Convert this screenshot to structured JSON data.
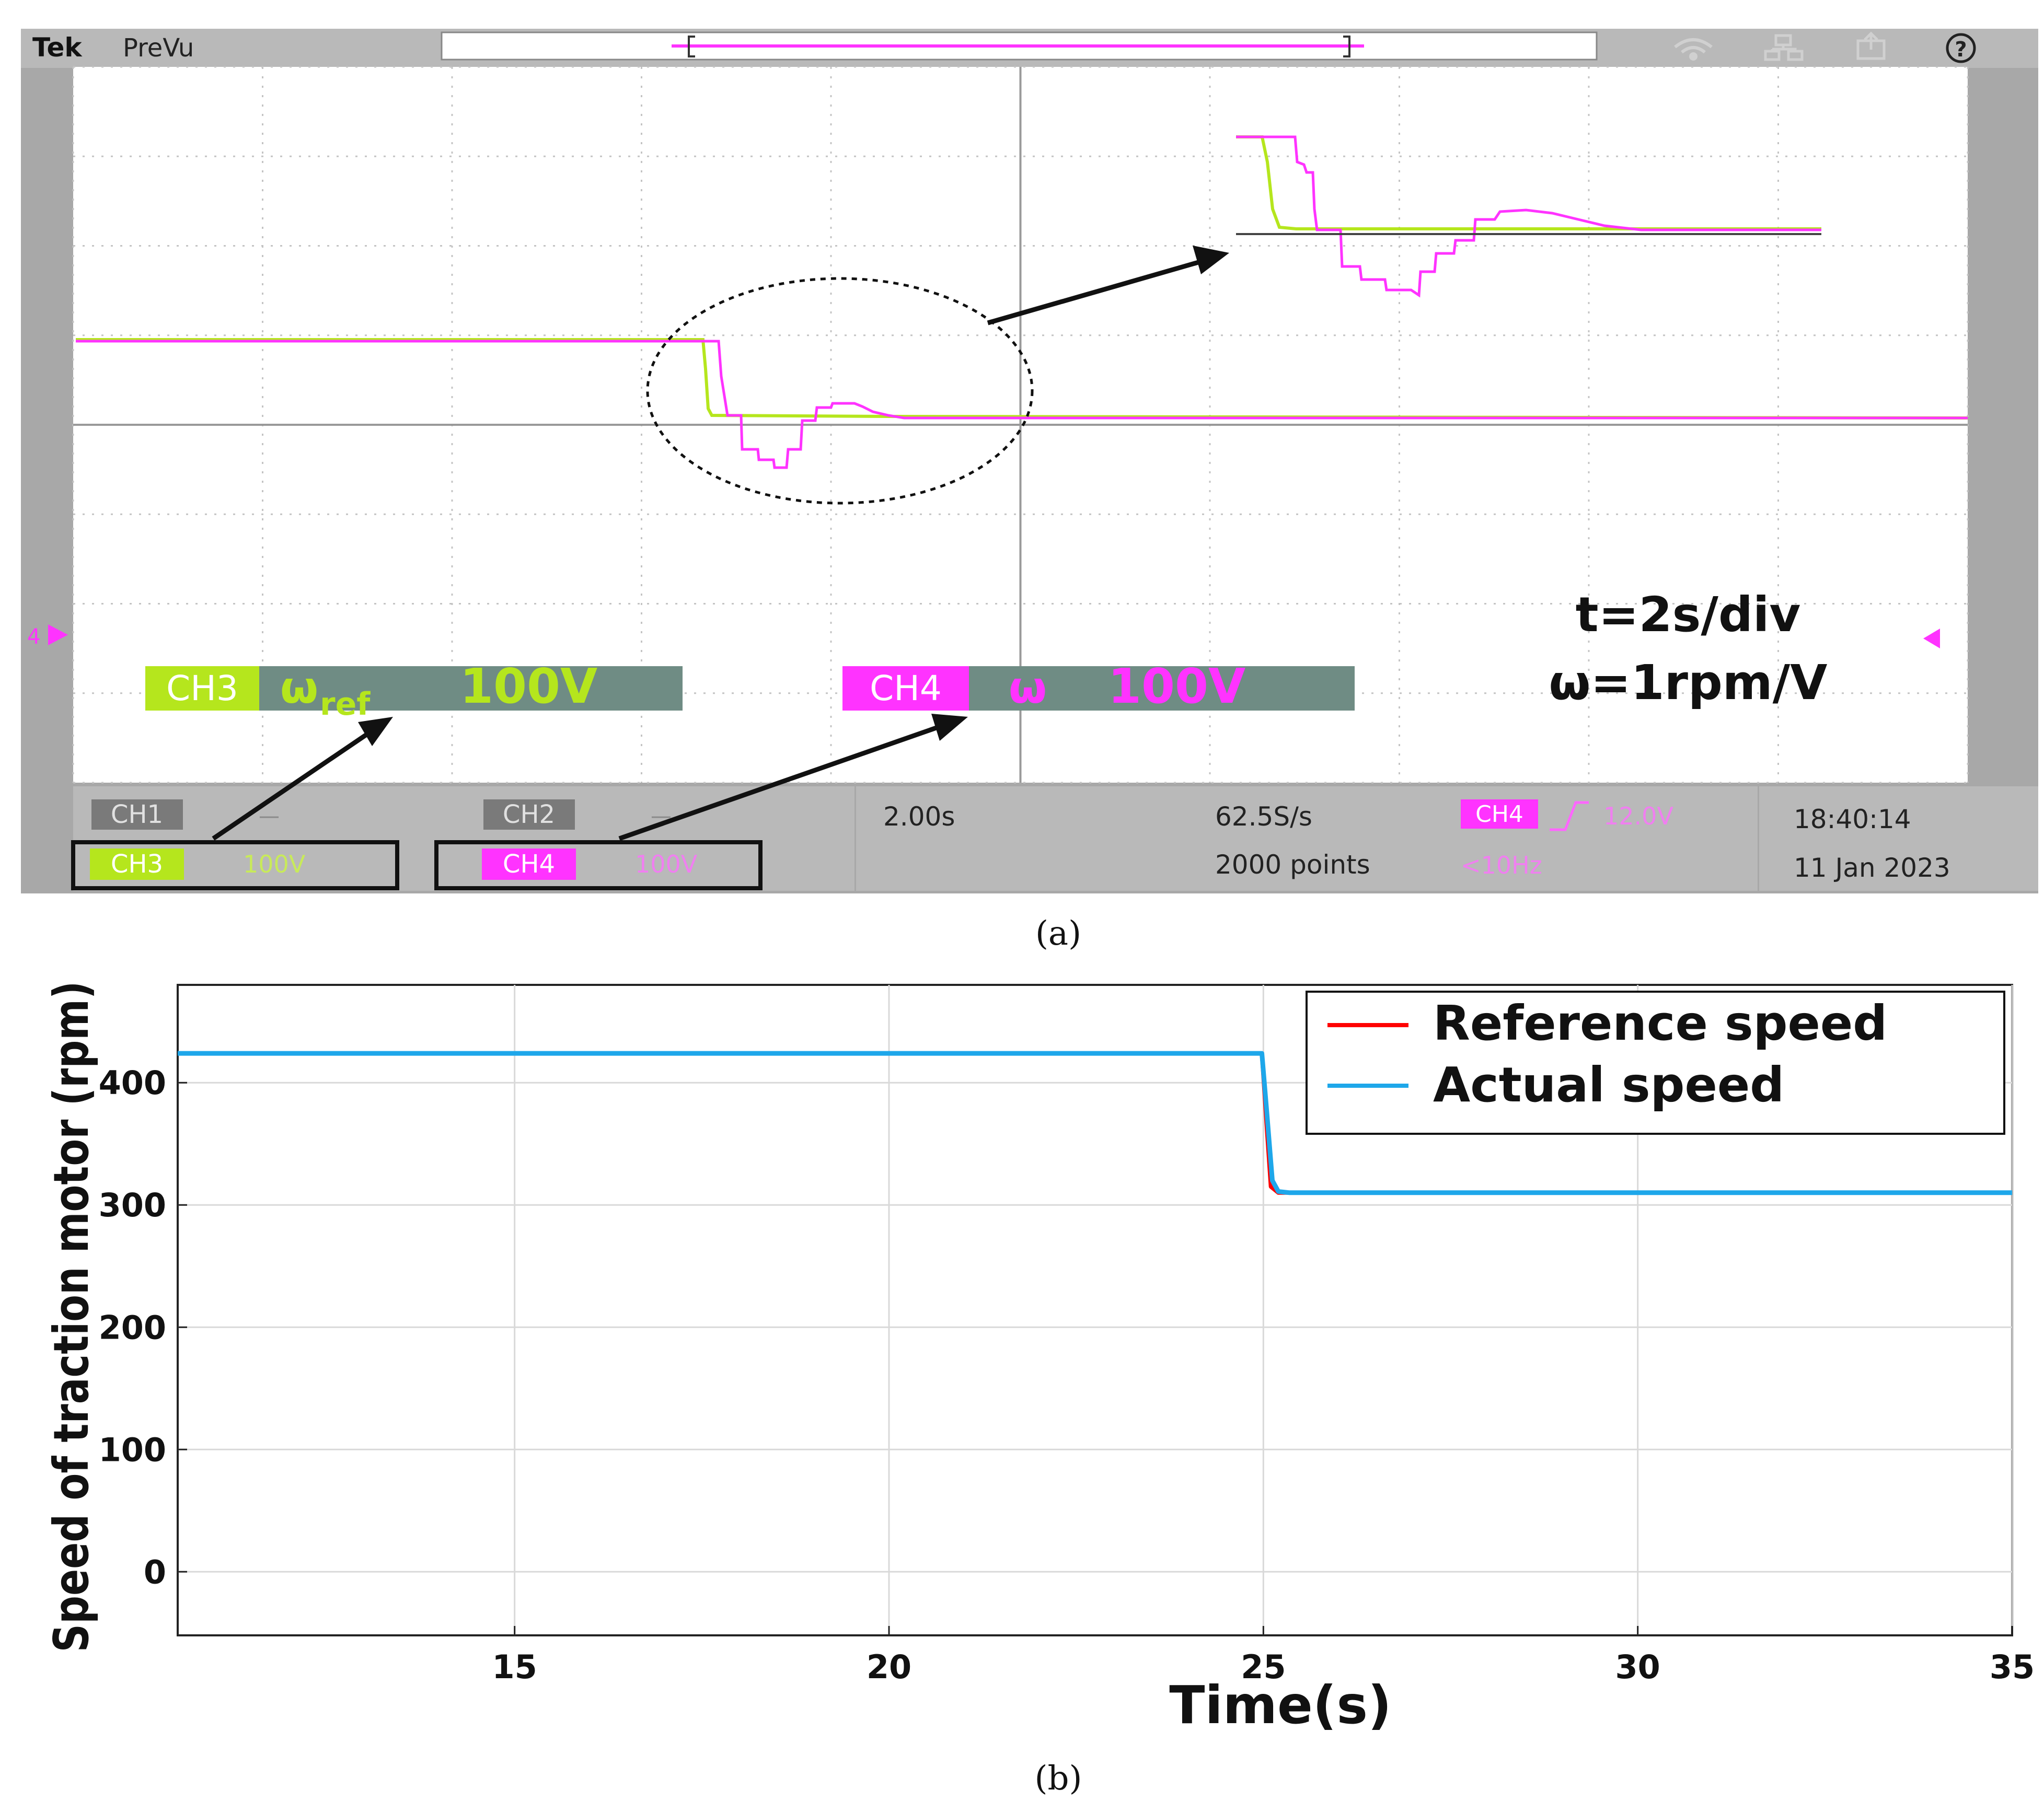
{
  "scope": {
    "brand": "Tek",
    "mode": "PreVu",
    "panel_caption": "(a)",
    "marker_left": "4",
    "annotations": {
      "time_scale": "t=2s/div",
      "speed_scale": "ω=1rpm/V"
    },
    "ch3_label": {
      "ch": "CH3",
      "sym": "ω",
      "sub": "ref",
      "val": "100V"
    },
    "ch4_label": {
      "ch": "CH4",
      "sym": "ω",
      "val": "100V"
    },
    "status_bar": {
      "ch1": "CH1",
      "ch1_val": "—",
      "ch2": "CH2",
      "ch2_val": "—",
      "ch3": "CH3",
      "ch3_val": "100V",
      "ch4": "CH4",
      "ch4_val": "100V",
      "timebase": "2.00s",
      "sample_rate": "62.5S/s",
      "record_length": "2000 points",
      "trigger_ch": "CH4",
      "trigger_level": "12.0V",
      "trigger_freq": "<10Hz",
      "time": "18:40:14",
      "date": "11 Jan 2023"
    },
    "colors": {
      "ch3": "#b5e61d",
      "ch4": "#ff33ff",
      "bg": "#ffffff",
      "frame": "#a8a8a8",
      "label_bg": "#6f8c84"
    }
  },
  "chart_data": {
    "type": "line",
    "caption": "(b)",
    "xlabel": "Time(s)",
    "ylabel": "Speed of traction motor (rpm)",
    "xlim": [
      10.5,
      35
    ],
    "ylim": [
      -52,
      480
    ],
    "xticks": [
      15,
      20,
      25,
      30,
      35
    ],
    "yticks": [
      0,
      100,
      200,
      300,
      400
    ],
    "grid": true,
    "legend_position": "top-right",
    "series": [
      {
        "name": "Reference speed",
        "color": "#ff0000",
        "x": [
          10.5,
          24.98,
          25.05,
          25.1,
          25.2,
          35
        ],
        "y": [
          424,
          424,
          360,
          315,
          310,
          310
        ]
      },
      {
        "name": "Actual speed",
        "color": "#1ea7ea",
        "x": [
          10.5,
          24.98,
          25.04,
          25.12,
          25.2,
          25.35,
          35
        ],
        "y": [
          424,
          424,
          380,
          320,
          311,
          310,
          310
        ]
      }
    ]
  }
}
